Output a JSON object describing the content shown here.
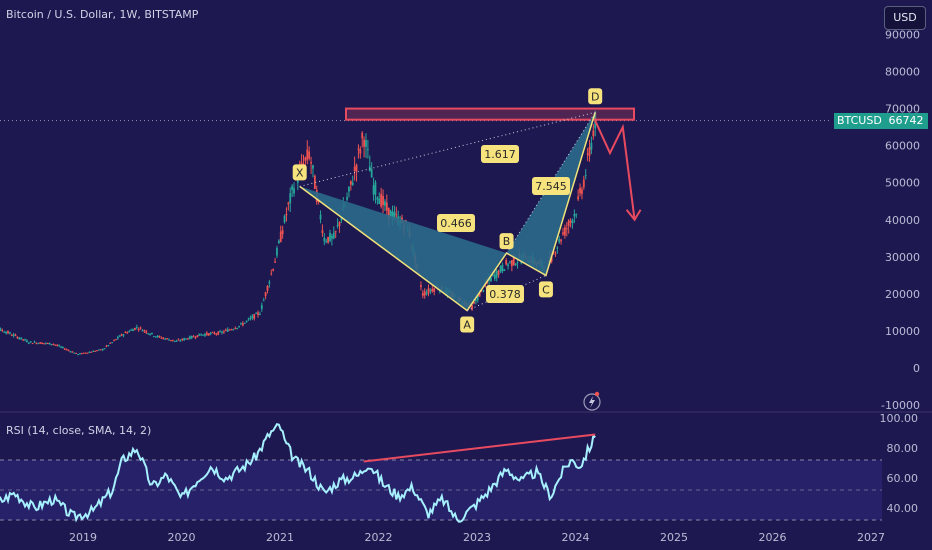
{
  "header": {
    "title": "Bitcoin / U.S. Dollar, 1W, BITSTAMP"
  },
  "currency_button": {
    "label": "USD"
  },
  "price_tag": {
    "symbol": "BTCUSD",
    "value": "66742"
  },
  "rsi_header": {
    "title": "RSI (14, close, SMA, 14, 2)"
  },
  "colors": {
    "background": "#1e1850",
    "candle_up": "#26a69a",
    "candle_down": "#ef5350",
    "pattern_fill": "#2a6a8a",
    "pattern_line": "#f2e27a",
    "resistance": "#e84a5f",
    "rsi_line": "#a6f0ff"
  },
  "chart_data": [
    {
      "type": "candlestick",
      "title": "Bitcoin / U.S. Dollar, 1W, BITSTAMP",
      "x_ticks": [
        "2019",
        "2020",
        "2021",
        "2022",
        "2023",
        "2024",
        "2025",
        "2026",
        "2027"
      ],
      "y_ticks": [
        "90000",
        "80000",
        "70000",
        "60000",
        "50000",
        "40000",
        "30000",
        "20000",
        "10000",
        "0",
        "-10000"
      ],
      "ylim": [
        -10000,
        90000
      ],
      "series": [
        {
          "name": "BTCUSD",
          "x": [
            2017.95,
            2018.2,
            2018.45,
            2018.7,
            2018.95,
            2019.2,
            2019.4,
            2019.55,
            2019.75,
            2019.95,
            2020.2,
            2020.4,
            2020.6,
            2020.8,
            2020.95,
            2021.05,
            2021.15,
            2021.3,
            2021.45,
            2021.55,
            2021.7,
            2021.85,
            2021.95,
            2022.1,
            2022.3,
            2022.45,
            2022.6,
            2022.75,
            2022.95,
            2023.1,
            2023.3,
            2023.5,
            2023.7,
            2023.85,
            2024.0,
            2024.1,
            2024.2
          ],
          "values": [
            12000,
            10000,
            7000,
            6500,
            3700,
            5000,
            9000,
            11000,
            8500,
            7200,
            9000,
            9500,
            11500,
            15000,
            29000,
            40000,
            50000,
            58000,
            35000,
            35000,
            47000,
            63000,
            49000,
            42000,
            38000,
            20000,
            22000,
            19500,
            16500,
            23000,
            28000,
            30000,
            27000,
            35000,
            42000,
            52000,
            66742
          ]
        }
      ],
      "ohlc_last": {
        "high": 69000,
        "close": 66742
      },
      "pattern": {
        "name": "XABCD",
        "points": [
          {
            "label": "X",
            "x": 2021.2,
            "y": 49000
          },
          {
            "label": "A",
            "x": 2022.9,
            "y": 15500
          },
          {
            "label": "B",
            "x": 2023.3,
            "y": 31000
          },
          {
            "label": "C",
            "x": 2023.7,
            "y": 25000
          },
          {
            "label": "D",
            "x": 2024.2,
            "y": 69000
          }
        ],
        "ratios": [
          "1.617",
          "0.466",
          "0.378",
          "7.545"
        ]
      },
      "resistance_zone": [
        67000,
        70000
      ],
      "projection": [
        66742,
        58000,
        65000,
        40000
      ]
    },
    {
      "type": "line",
      "title": "RSI (14, close, SMA, 14, 2)",
      "y_ticks": [
        "100.00",
        "80.00",
        "60.00",
        "40.00"
      ],
      "ylim": [
        30,
        100
      ],
      "bands": [
        30,
        70
      ],
      "series": [
        {
          "name": "RSI",
          "x": [
            2017.7,
            2017.9,
            2018.1,
            2018.3,
            2018.5,
            2018.7,
            2018.9,
            2019.1,
            2019.3,
            2019.4,
            2019.55,
            2019.7,
            2019.85,
            2020.0,
            2020.15,
            2020.3,
            2020.45,
            2020.6,
            2020.75,
            2020.9,
            2021.0,
            2021.05,
            2021.15,
            2021.3,
            2021.45,
            2021.6,
            2021.8,
            2021.9,
            2022.05,
            2022.2,
            2022.35,
            2022.5,
            2022.65,
            2022.8,
            2022.95,
            2023.1,
            2023.3,
            2023.45,
            2023.6,
            2023.75,
            2023.85,
            2023.95,
            2024.05,
            2024.2
          ],
          "values": [
            42,
            46,
            40,
            48,
            38,
            44,
            32,
            36,
            50,
            70,
            78,
            52,
            60,
            44,
            56,
            66,
            58,
            64,
            72,
            88,
            93,
            82,
            70,
            62,
            48,
            56,
            60,
            68,
            54,
            46,
            52,
            34,
            44,
            30,
            38,
            48,
            64,
            56,
            62,
            46,
            60,
            70,
            66,
            86
          ]
        }
      ],
      "divergence_line": [
        [
          2021.85,
          69
        ],
        [
          2024.2,
          87
        ]
      ]
    }
  ]
}
